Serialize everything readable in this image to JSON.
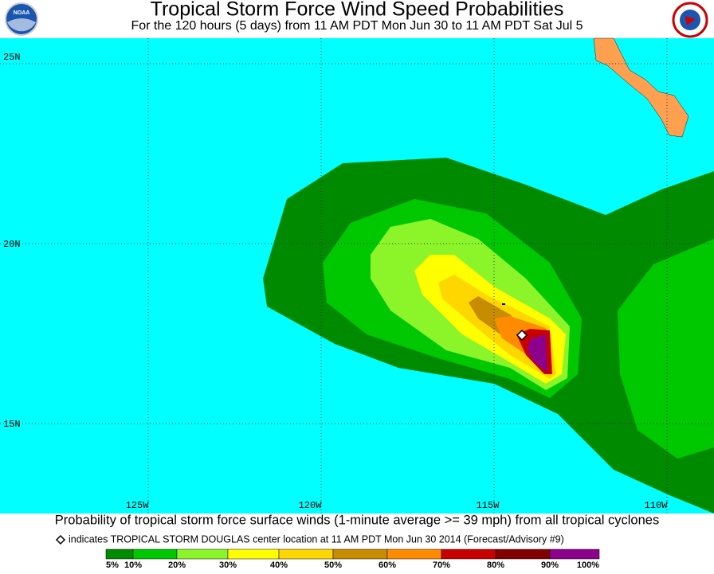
{
  "header": {
    "title": "Tropical Storm Force Wind Speed Probabilities",
    "subtitle": "For the 120 hours (5 days) from 11 AM PDT Mon Jun 30 to 11 AM PDT Sat Jul 5",
    "logo_left": "NOAA"
  },
  "map": {
    "lat_labels": [
      "25N",
      "20N",
      "15N"
    ],
    "lon_labels": [
      "125W",
      "120W",
      "115W",
      "110W"
    ]
  },
  "footer": {
    "caption": "Probability of tropical storm force surface winds (1-minute average >= 39 mph) from all tropical cyclones",
    "note": "indicates TROPICAL STORM DOUGLAS center location at 11 AM PDT Mon Jun 30 2014 (Forecast/Advisory #9)"
  },
  "legend": {
    "labels": [
      "5%",
      "10%",
      "20%",
      "30%",
      "40%",
      "50%",
      "60%",
      "70%",
      "80%",
      "90%",
      "100%"
    ],
    "colors": [
      "#008a00",
      "#00c800",
      "#8cf52a",
      "#ffff00",
      "#ffd700",
      "#c88c00",
      "#ff8c00",
      "#c80000",
      "#820000",
      "#8c008c"
    ]
  }
}
